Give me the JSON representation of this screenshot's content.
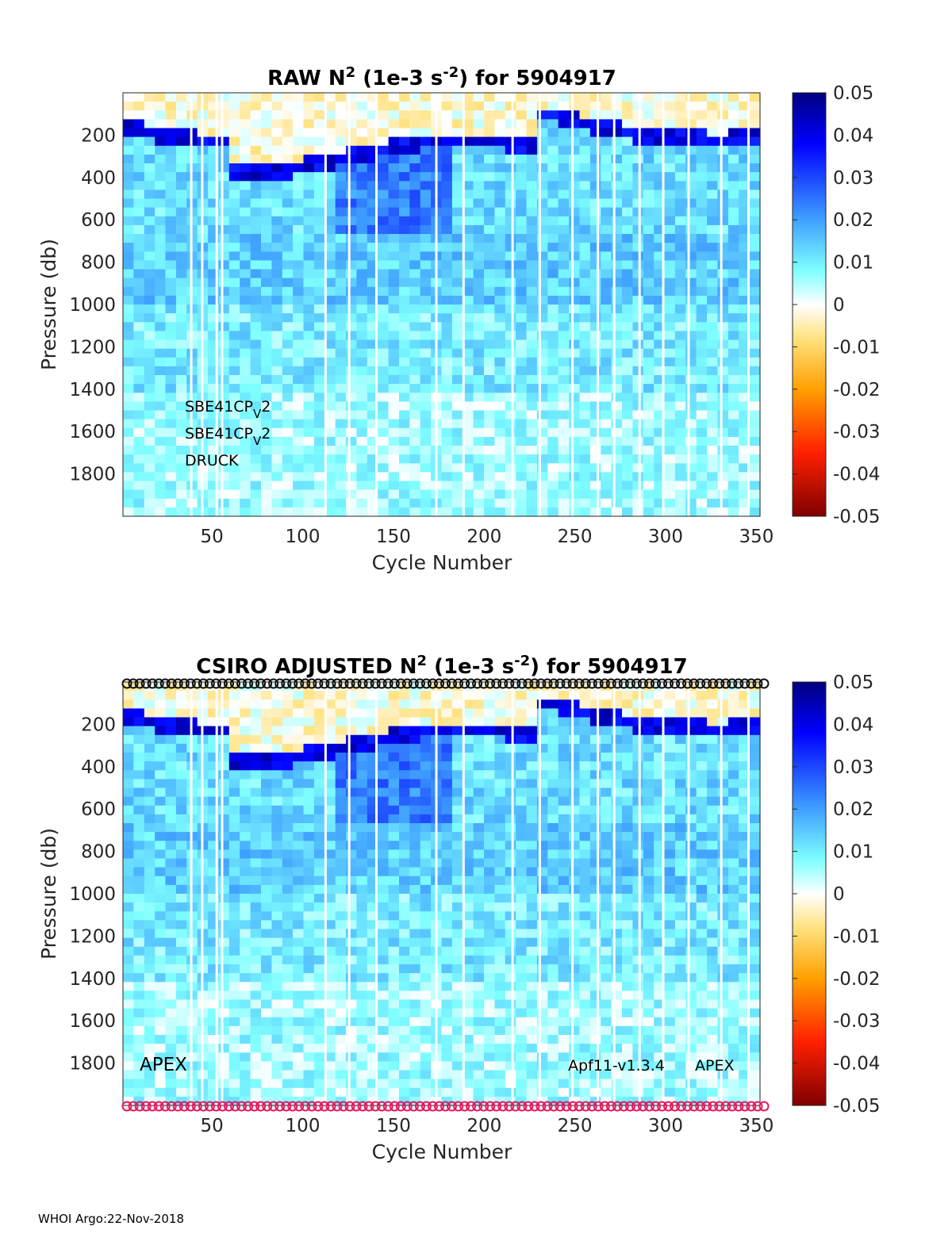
{
  "chart_data": [
    {
      "type": "heatmap",
      "title_prefix": "RAW N",
      "title_sup": "2",
      "title_mid": " (1e-3 s",
      "title_sup2": "-2",
      "title_suffix": ") for 5904917",
      "xlabel": "Cycle Number",
      "ylabel": "Pressure (db)",
      "xlim": [
        1,
        352
      ],
      "ylim": [
        2000,
        0
      ],
      "xticks": [
        50,
        100,
        150,
        200,
        250,
        300,
        350
      ],
      "yticks": [
        200,
        400,
        600,
        800,
        1000,
        1200,
        1400,
        1600,
        1800
      ],
      "colorbar": {
        "range": [
          -0.05,
          0.05
        ],
        "ticks": [
          0.05,
          0.04,
          0.03,
          0.02,
          0.01,
          0,
          -0.01,
          -0.02,
          -0.03,
          -0.04,
          -0.05
        ],
        "tick_labels": [
          "0.05",
          "0.04",
          "0.03",
          "0.02",
          "0.01",
          "0",
          "-0.01",
          "-0.02",
          "-0.03",
          "-0.04",
          "-0.05"
        ],
        "colormap": "jet"
      },
      "annotations": [
        {
          "base": "SBE41CP",
          "sub": "V",
          "tail": "2"
        },
        {
          "base": "SBE41CP",
          "sub": "V",
          "tail": "2"
        },
        {
          "base": "DRUCK",
          "sub": "",
          "tail": ""
        }
      ]
    },
    {
      "type": "heatmap",
      "title_prefix": "CSIRO  ADJUSTED N",
      "title_sup": "2",
      "title_mid": " (1e-3 s",
      "title_sup2": "-2",
      "title_suffix": ") for 5904917",
      "xlabel": "Cycle Number",
      "ylabel": "Pressure (db)",
      "xlim": [
        1,
        352
      ],
      "ylim": [
        2000,
        0
      ],
      "xticks": [
        50,
        100,
        150,
        200,
        250,
        300,
        350
      ],
      "yticks": [
        200,
        400,
        600,
        800,
        1000,
        1200,
        1400,
        1600,
        1800
      ],
      "colorbar": {
        "range": [
          -0.05,
          0.05
        ],
        "ticks": [
          0.05,
          0.04,
          0.03,
          0.02,
          0.01,
          0,
          -0.01,
          -0.02,
          -0.03,
          -0.04,
          -0.05
        ],
        "tick_labels": [
          "0.05",
          "0.04",
          "0.03",
          "0.02",
          "0.01",
          "0",
          "-0.01",
          "-0.02",
          "-0.03",
          "-0.04",
          "-0.05"
        ],
        "colormap": "jet"
      },
      "annotations_left": "APEX",
      "annotations_right": [
        "Apf11-v1.3.4",
        "APEX"
      ],
      "top_marker_color": "#111111",
      "bottom_marker_color": "#e8185f"
    }
  ],
  "footer": "WHOI Argo:22-Nov-2018",
  "colors": {
    "tick_text": "#262626",
    "axis_line": "#262626"
  }
}
